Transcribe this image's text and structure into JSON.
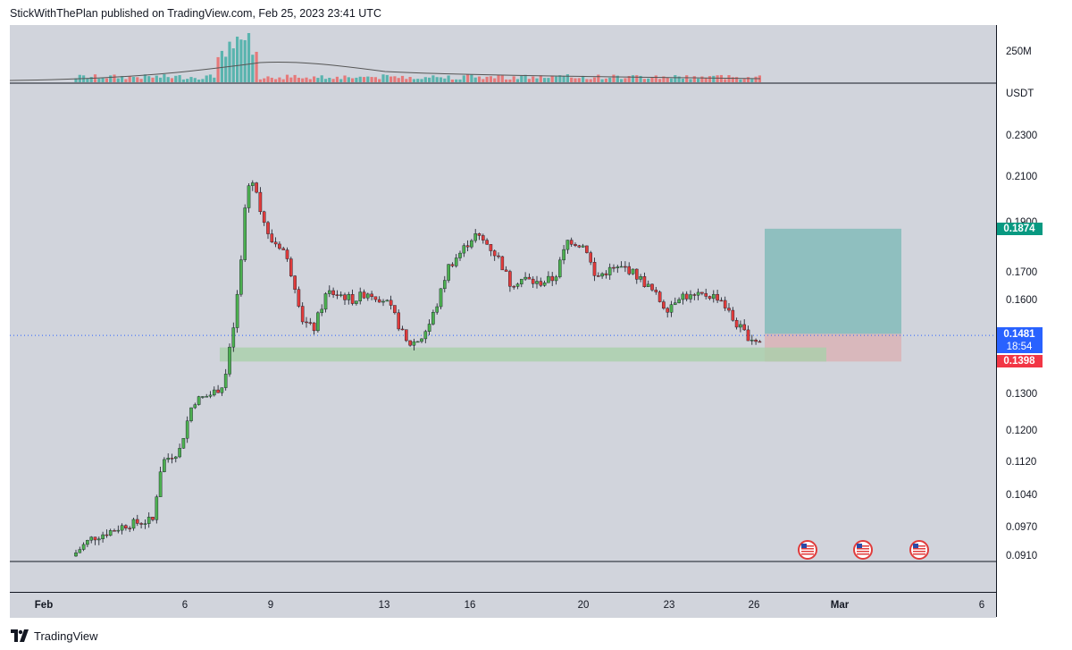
{
  "header": {
    "text": "StickWithThePlan published on TradingView.com, Feb 25, 2023 23:41 UTC"
  },
  "footer": {
    "brand": "TradingView",
    "logo_icon": "tradingview-logo-icon"
  },
  "colors": {
    "up": "#26a69a",
    "down": "#ef5350",
    "up_candle": "#4caf50",
    "down_candle": "#e03b3b",
    "target_zone": "#8fbfbf",
    "stop_zone": "#d9b8bc",
    "support_zone": "#a9cfaa",
    "current_price_tag": "#2962ff"
  },
  "chart_data": {
    "type": "candlestick",
    "symbol_currency": "USDT",
    "volume_axis_label": "250M",
    "y_scale": "log",
    "ylim": [
      0.0905,
      0.233
    ],
    "x_ticks": [
      "Feb",
      "6",
      "9",
      "13",
      "16",
      "20",
      "23",
      "26",
      "Mar",
      "6"
    ],
    "y_ticks": [
      "0.2300",
      "0.2100",
      "0.1900",
      "0.1700",
      "0.1600",
      "0.1300",
      "0.1200",
      "0.1120",
      "0.1040",
      "0.0970",
      "0.0910"
    ],
    "price_tags": {
      "target": "0.1874",
      "entry": "0.1486",
      "current": "0.1481",
      "countdown": "18:54",
      "stop": "0.1398"
    },
    "long_position": {
      "entry": 0.1486,
      "target": 0.1874,
      "stop": 0.1398
    },
    "support_zone": {
      "low": 0.1398,
      "high": 0.1442
    },
    "event_icons": [
      "us-flag-icon",
      "us-flag-icon",
      "us-flag-icon"
    ]
  }
}
